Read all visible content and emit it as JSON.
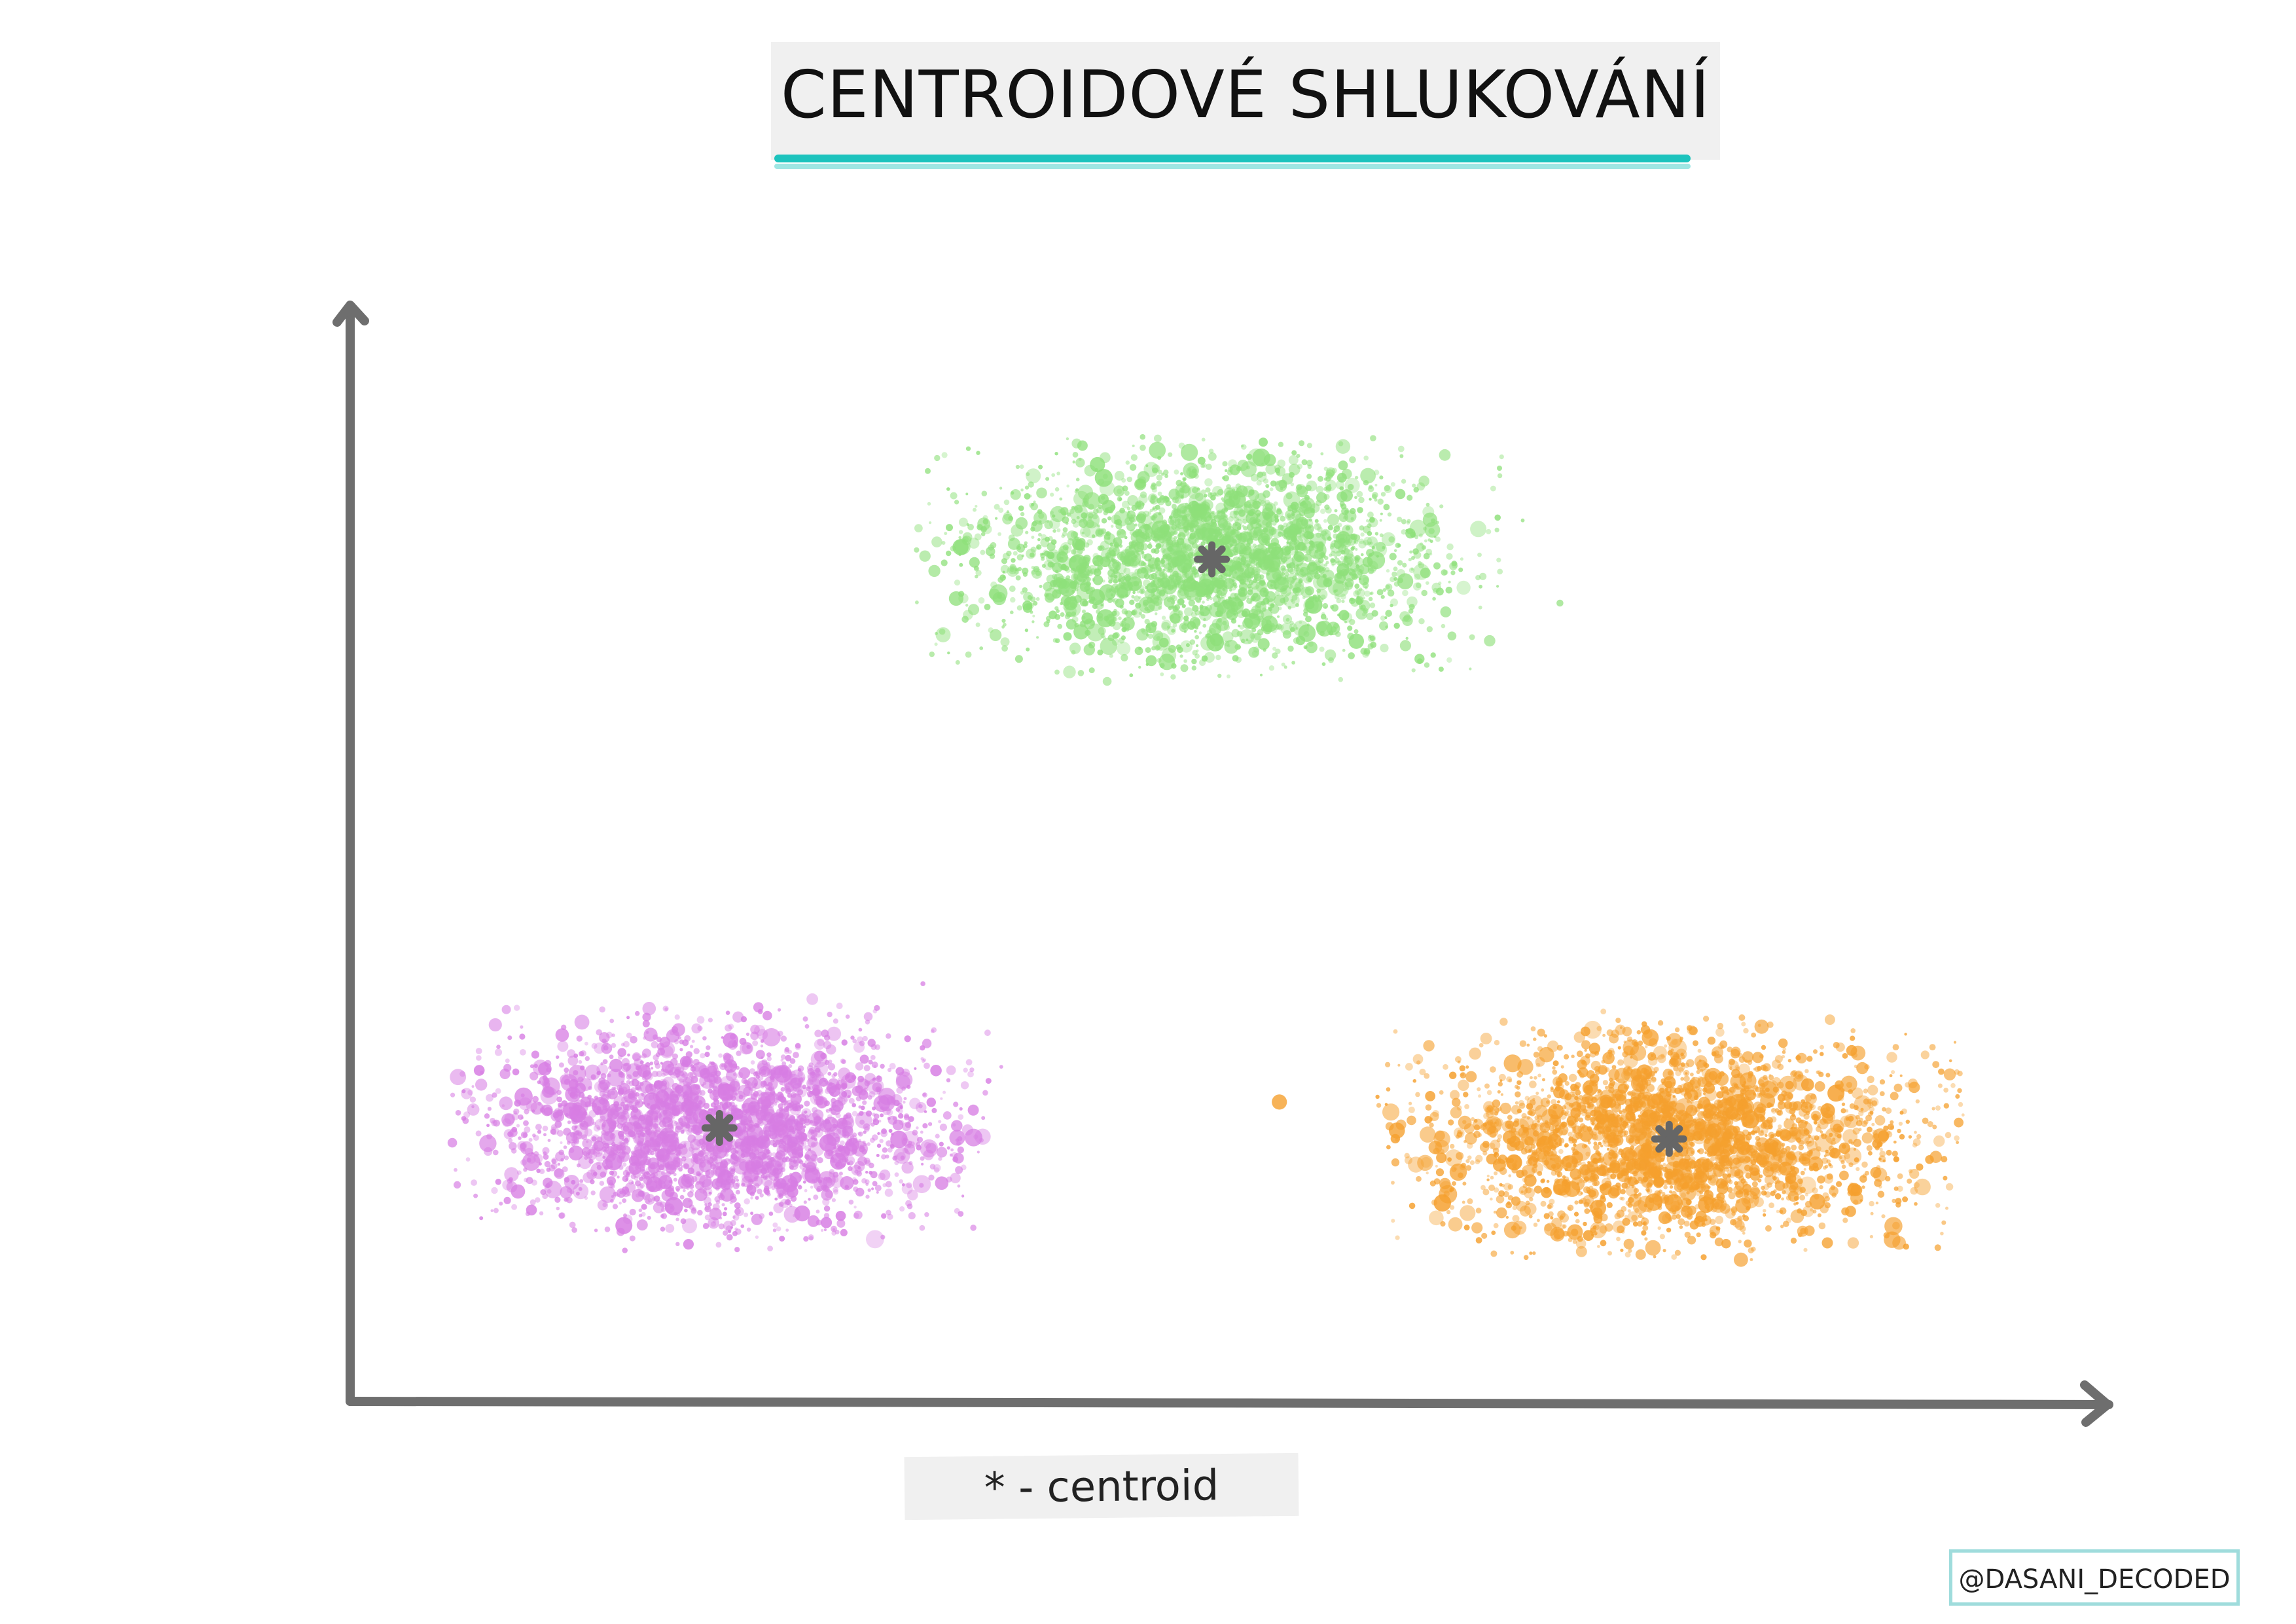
{
  "title": "CENTROIDOVÉ SHLUKOVÁNÍ",
  "legend": "* - centroid",
  "credit": "@DASANI_DECODED",
  "colors": {
    "axis": "#6e6e6e",
    "title_underline": "#1cc3bd",
    "centroid": "#666666"
  },
  "chart_data": {
    "type": "scatter",
    "xlim": [
      0,
      100
    ],
    "ylim": [
      0,
      100
    ],
    "grid": false,
    "ticks": false,
    "clusters": [
      {
        "color": "#8ee07a",
        "centroid": {
          "x": 49,
          "y": 77
        },
        "spread_x": 12,
        "spread_y": 8,
        "count": 2600
      },
      {
        "color": "#d77de3",
        "centroid": {
          "x": 21,
          "y": 25
        },
        "spread_x": 11,
        "spread_y": 8,
        "count": 2600
      },
      {
        "color": "#f5a02e",
        "centroid": {
          "x": 75,
          "y": 24
        },
        "spread_x": 12,
        "spread_y": 8,
        "count": 2600
      }
    ]
  }
}
